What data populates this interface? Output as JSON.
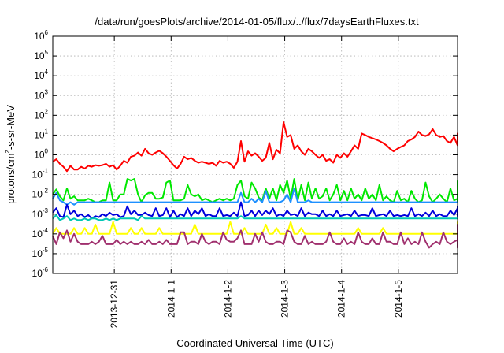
{
  "chart_data": {
    "type": "line",
    "title": "/data/run/goesPlots/archive/2014-01-05/flux/../flux/7daysEarthFluxes.txt",
    "xlabel": "Coordinated Universal Time (UTC)",
    "ylabel": "protons/cm²-s-sr-MeV",
    "ylabel_parts": {
      "pre": "protons/cm",
      "sup": "2",
      "post": "-s-sr-MeV"
    },
    "y_scale": "log",
    "ylim": [
      1e-06,
      1000000.0
    ],
    "xlim": [
      "2013-12-29T22:00",
      "2014-01-06T01:00"
    ],
    "grid": true,
    "legend": "none",
    "x_ticks": [
      {
        "at": "2013-12-31T00:00",
        "label": "2013-12-31"
      },
      {
        "at": "2014-01-01T00:00",
        "label": "2014-1-1"
      },
      {
        "at": "2014-01-02T00:00",
        "label": "2014-1-2"
      },
      {
        "at": "2014-01-03T00:00",
        "label": "2014-1-3"
      },
      {
        "at": "2014-01-04T00:00",
        "label": "2014-1-4"
      },
      {
        "at": "2014-01-05T00:00",
        "label": "2014-1-5"
      }
    ],
    "y_ticks": [
      {
        "exp": -6,
        "base": "10",
        "sup": "-6"
      },
      {
        "exp": -5,
        "base": "10",
        "sup": "-5"
      },
      {
        "exp": -4,
        "base": "10",
        "sup": "-4"
      },
      {
        "exp": -3,
        "base": "10",
        "sup": "-3"
      },
      {
        "exp": -2,
        "base": "10",
        "sup": "-2"
      },
      {
        "exp": -1,
        "base": "10",
        "sup": "-1"
      },
      {
        "exp": 0,
        "base": "10",
        "sup": "0"
      },
      {
        "exp": 1,
        "base": "10",
        "sup": "1"
      },
      {
        "exp": 2,
        "base": "10",
        "sup": "2"
      },
      {
        "exp": 3,
        "base": "10",
        "sup": "3"
      },
      {
        "exp": 4,
        "base": "10",
        "sup": "4"
      },
      {
        "exp": 5,
        "base": "10",
        "sup": "5"
      },
      {
        "exp": 6,
        "base": "10",
        "sup": "6"
      }
    ],
    "x_start": "2013-12-29T22:00",
    "step_hours": 1.5,
    "series": [
      {
        "color": "#ff0000",
        "values": [
          0.45,
          0.6,
          0.35,
          0.25,
          0.15,
          0.28,
          0.18,
          0.18,
          0.25,
          0.2,
          0.28,
          0.25,
          0.3,
          0.28,
          0.3,
          0.35,
          0.25,
          0.3,
          0.18,
          0.28,
          0.5,
          0.4,
          0.8,
          0.9,
          1.3,
          0.9,
          2.0,
          1.2,
          1.0,
          1.3,
          1.6,
          1.2,
          0.8,
          0.5,
          0.3,
          0.2,
          0.35,
          0.8,
          0.6,
          0.7,
          0.5,
          0.4,
          0.45,
          0.4,
          0.35,
          0.4,
          0.28,
          0.5,
          0.4,
          0.45,
          0.35,
          0.22,
          0.45,
          5.0,
          0.45,
          1.5,
          0.9,
          1.2,
          0.8,
          0.5,
          0.7,
          4.0,
          0.6,
          1.8,
          1.2,
          45,
          8,
          10,
          2.0,
          3.0,
          1.5,
          1.0,
          2.0,
          1.5,
          1.0,
          0.7,
          1.0,
          0.5,
          0.6,
          0.4,
          1.0,
          0.7,
          1.2,
          0.8,
          1.5,
          3.0,
          2.0,
          12,
          10,
          8,
          7,
          6,
          5,
          4,
          3,
          2,
          1.5,
          2,
          2.5,
          3,
          5,
          6,
          8,
          15,
          10,
          9,
          11,
          20,
          10,
          8,
          9,
          5,
          4,
          8,
          3,
          6,
          4,
          9,
          6,
          11,
          8,
          7,
          12,
          9,
          12,
          10,
          8,
          13
        ]
      },
      {
        "color": "#00e800",
        "values": [
          0.01,
          0.018,
          0.008,
          0.005,
          0.02,
          0.006,
          0.008,
          0.005,
          0.005,
          0.005,
          0.006,
          0.005,
          0.004,
          0.004,
          0.005,
          0.005,
          0.04,
          0.005,
          0.005,
          0.01,
          0.01,
          0.06,
          0.05,
          0.06,
          0.01,
          0.004,
          0.009,
          0.012,
          0.012,
          0.006,
          0.006,
          0.007,
          0.04,
          0.05,
          0.005,
          0.005,
          0.005,
          0.006,
          0.03,
          0.01,
          0.008,
          0.01,
          0.005,
          0.006,
          0.005,
          0.004,
          0.005,
          0.006,
          0.005,
          0.006,
          0.005,
          0.006,
          0.03,
          0.05,
          0.008,
          0.006,
          0.04,
          0.02,
          0.007,
          0.005,
          0.02,
          0.006,
          0.02,
          0.005,
          0.03,
          0.012,
          0.05,
          0.006,
          0.06,
          0.005,
          0.03,
          0.005,
          0.04,
          0.006,
          0.02,
          0.006,
          0.008,
          0.02,
          0.005,
          0.01,
          0.03,
          0.005,
          0.015,
          0.005,
          0.02,
          0.006,
          0.01,
          0.005,
          0.02,
          0.006,
          0.01,
          0.005,
          0.03,
          0.005,
          0.008,
          0.005,
          0.004,
          0.015,
          0.005,
          0.006,
          0.004,
          0.015,
          0.006,
          0.004,
          0.005,
          0.04,
          0.008,
          0.004,
          0.006,
          0.01,
          0.006,
          0.004,
          0.02,
          0.005,
          0.006,
          0.004,
          0.03,
          0.005,
          0.008,
          0.006,
          0.02,
          0.005,
          0.01,
          0.004,
          0.006,
          0.005,
          0.004,
          0.02,
          0.005,
          0.008,
          0.007,
          0.05
        ]
      },
      {
        "color": "#1e90ff",
        "values": [
          0.006,
          0.012,
          0.005,
          0.004,
          0.003,
          0.004,
          0.003,
          0.004,
          0.004,
          0.004,
          0.004,
          0.004,
          0.004,
          0.004,
          0.004,
          0.004,
          0.004,
          0.004,
          0.004,
          0.004,
          0.004,
          0.004,
          0.004,
          0.004,
          0.004,
          0.004,
          0.004,
          0.004,
          0.004,
          0.004,
          0.004,
          0.004,
          0.004,
          0.004,
          0.004,
          0.004,
          0.004,
          0.004,
          0.004,
          0.004,
          0.004,
          0.004,
          0.004,
          0.004,
          0.004,
          0.004,
          0.004,
          0.004,
          0.004,
          0.004,
          0.004,
          0.004,
          0.004,
          0.012,
          0.004,
          0.004,
          0.006,
          0.004,
          0.006,
          0.004,
          0.015,
          0.004,
          0.004,
          0.004,
          0.004,
          0.005,
          0.01,
          0.004,
          0.02,
          0.004,
          0.004,
          0.004,
          0.005,
          0.004,
          0.004,
          0.004,
          0.004,
          0.004,
          0.004,
          0.004,
          0.004,
          0.004,
          0.004,
          0.004,
          0.004,
          0.004,
          0.004,
          0.004,
          0.004,
          0.004,
          0.004,
          0.004,
          0.004,
          0.004,
          0.004,
          0.004,
          0.004,
          0.004,
          0.004,
          0.004,
          0.004,
          0.004,
          0.004,
          0.004,
          0.004,
          0.004,
          0.004,
          0.004,
          0.004,
          0.004,
          0.004,
          0.004,
          0.004,
          0.004,
          0.004,
          0.004,
          0.004,
          0.004,
          0.004,
          0.004,
          0.004,
          0.004,
          0.004,
          0.004,
          0.004,
          0.004,
          0.004,
          0.004,
          0.004,
          0.004,
          0.004,
          0.004,
          0.004,
          0.004
        ]
      },
      {
        "color": "#0000dd",
        "values": [
          0.0012,
          0.002,
          0.0008,
          0.0007,
          0.003,
          0.001,
          0.0015,
          0.0008,
          0.001,
          0.0007,
          0.0009,
          0.0006,
          0.0008,
          0.0007,
          0.001,
          0.0008,
          0.0012,
          0.0009,
          0.001,
          0.0007,
          0.0008,
          0.0025,
          0.001,
          0.0015,
          0.0009,
          0.0009,
          0.0012,
          0.0009,
          0.0008,
          0.002,
          0.0008,
          0.0009,
          0.002,
          0.0007,
          0.0015,
          0.0007,
          0.001,
          0.0008,
          0.002,
          0.0008,
          0.0015,
          0.001,
          0.002,
          0.0008,
          0.001,
          0.0008,
          0.0008,
          0.002,
          0.0008,
          0.0009,
          0.0008,
          0.0012,
          0.0008,
          0.004,
          0.0008,
          0.0009,
          0.0015,
          0.0008,
          0.0015,
          0.0009,
          0.0015,
          0.001,
          0.002,
          0.0008,
          0.001,
          0.0008,
          0.0015,
          0.0009,
          0.001,
          0.0008,
          0.002,
          0.0008,
          0.0012,
          0.001,
          0.001,
          0.0008,
          0.0015,
          0.0008,
          0.001,
          0.0008,
          0.0015,
          0.0008,
          0.0009,
          0.001,
          0.0008,
          0.0015,
          0.0008,
          0.0009,
          0.0009,
          0.0008,
          0.002,
          0.0008,
          0.0009,
          0.001,
          0.0008,
          0.0015,
          0.0008,
          0.0009,
          0.0008,
          0.0009,
          0.0008,
          0.002,
          0.0008,
          0.001,
          0.0008,
          0.0012,
          0.0008,
          0.0015,
          0.0008,
          0.001,
          0.0008,
          0.0008,
          0.0015,
          0.0009,
          0.002,
          0.0008,
          0.001,
          0.0008,
          0.0025,
          0.0008,
          0.0009,
          0.0015,
          0.0008,
          0.0009,
          0.0015,
          0.0008,
          0.0009,
          0.0008,
          0.0015,
          0.0009,
          0.001,
          0.0008,
          0.0015,
          0.0008
        ]
      },
      {
        "color": "#00c8b4",
        "values": [
          0.0006,
          0.0009,
          0.0005,
          0.0006,
          0.0008,
          0.0005,
          0.0006,
          0.0005,
          0.0005,
          0.0006,
          0.0005,
          0.0006,
          0.0006,
          0.0005,
          0.0005,
          0.0006,
          0.0005,
          0.0006,
          0.0005,
          0.0006,
          0.0006,
          0.0006,
          0.0006,
          0.0006,
          0.0005,
          0.0008,
          0.0006,
          0.0006,
          0.0006,
          0.0006,
          0.0006,
          0.0006,
          0.0006,
          0.0006,
          0.0006,
          0.0006,
          0.0006,
          0.0006,
          0.0006,
          0.0006,
          0.0006,
          0.0006,
          0.0006,
          0.0006,
          0.0006,
          0.0006,
          0.0006,
          0.0006,
          0.0006,
          0.0006,
          0.0006,
          0.0006,
          0.0006,
          0.0008,
          0.0006,
          0.0006,
          0.0006,
          0.0006,
          0.0006,
          0.0006,
          0.0006,
          0.0006,
          0.0006,
          0.0006,
          0.0006,
          0.0006,
          0.0006,
          0.0006,
          0.0006,
          0.0006,
          0.0006,
          0.0006,
          0.0006,
          0.0006,
          0.0006,
          0.0006,
          0.0006,
          0.0006,
          0.0006,
          0.0006,
          0.0006,
          0.0006,
          0.0006,
          0.0006,
          0.0006,
          0.0006,
          0.0006,
          0.0006,
          0.0006,
          0.0006,
          0.0006,
          0.0006,
          0.0006,
          0.0006,
          0.0006,
          0.0006,
          0.0006,
          0.0006,
          0.0006,
          0.0006,
          0.0006,
          0.0006,
          0.0006,
          0.0006,
          0.0006,
          0.0006,
          0.0006,
          0.0006,
          0.0006,
          0.0006,
          0.0006,
          0.0006,
          0.0006,
          0.0006,
          0.0006,
          0.0006,
          0.0006,
          0.0006,
          0.0006,
          0.0006,
          0.0006,
          0.0006,
          0.0006,
          0.0006,
          0.0006,
          0.0006,
          0.0006,
          0.0006,
          0.0006,
          0.0006,
          0.0006,
          0.0006,
          0.0006,
          0.0006
        ]
      },
      {
        "color": "#ffff00",
        "values": [
          0.0001,
          0.0002,
          0.0001,
          0.0001,
          0.0001,
          0.0001,
          0.0002,
          0.0001,
          0.0001,
          0.0002,
          0.0001,
          0.0001,
          0.0003,
          0.0001,
          0.0001,
          0.0001,
          0.0001,
          0.0004,
          0.0001,
          0.0001,
          0.0001,
          0.0001,
          0.0002,
          0.0001,
          0.0001,
          0.0002,
          0.0001,
          0.0001,
          0.0001,
          0.0001,
          0.0002,
          0.0001,
          0.0001,
          0.0001,
          0.0001,
          0.0001,
          0.0001,
          0.0001,
          0.0001,
          0.0001,
          0.0003,
          0.0001,
          0.0001,
          0.0001,
          0.0001,
          0.0001,
          0.0001,
          0.0001,
          0.0001,
          0.0001,
          0.0004,
          0.0001,
          0.0001,
          0.0001,
          0.0002,
          0.0001,
          0.0001,
          0.0001,
          0.0001,
          0.0001,
          0.0003,
          0.0001,
          0.0001,
          0.0002,
          0.0001,
          0.0001,
          0.0001,
          0.0004,
          0.0001,
          0.0001,
          0.0002,
          0.0001,
          0.0001,
          0.0001,
          0.0001,
          0.0001,
          0.0001,
          0.0001,
          0.0001,
          0.0001,
          0.0001,
          0.0001,
          0.0001,
          0.0001,
          0.0001,
          0.0001,
          0.0002,
          0.0001,
          0.0001,
          0.0001,
          0.0001,
          0.0001,
          0.0001,
          0.0002,
          0.0001,
          0.0001,
          0.0001,
          0.0001,
          0.0001,
          0.0001,
          0.0001,
          0.0001,
          0.0001,
          0.0001,
          0.0001,
          0.0001,
          0.0001,
          0.0001,
          0.0001,
          0.0001,
          0.0001,
          0.0001,
          0.0001,
          0.0001,
          0.0001,
          0.0001,
          0.0001,
          0.0001,
          0.0003,
          0.0001,
          0.0001,
          0.0001,
          0.0004,
          0.0001,
          0.0001,
          0.0001,
          0.0003,
          0.0001,
          0.0001,
          0.0001,
          0.0001,
          0.0001,
          0.0001,
          0.0001
        ]
      },
      {
        "color": "#a0306e",
        "values": [
          8e-05,
          3e-05,
          0.00012,
          6e-05,
          0.00015,
          4e-05,
          0.0001,
          4e-05,
          3e-05,
          3e-05,
          3e-05,
          4e-05,
          3e-05,
          4e-05,
          8e-05,
          3e-05,
          3e-05,
          3e-05,
          5e-05,
          3e-05,
          4e-05,
          3e-05,
          4e-05,
          3e-05,
          3e-05,
          4e-05,
          3e-05,
          5e-05,
          3e-05,
          3e-05,
          4e-05,
          3e-05,
          5e-05,
          3e-05,
          3e-05,
          3e-05,
          0.00012,
          0.00012,
          3e-05,
          4e-05,
          4e-05,
          3e-05,
          0.0001,
          4e-05,
          3e-05,
          4e-05,
          4e-05,
          3e-05,
          0.00012,
          5e-05,
          4e-05,
          4e-05,
          6e-05,
          0.00015,
          3e-05,
          3e-05,
          3e-05,
          0.0001,
          4e-05,
          0.00012,
          4e-05,
          3e-05,
          3e-05,
          4e-05,
          4e-05,
          3e-05,
          0.00015,
          0.00012,
          4e-05,
          3e-05,
          3e-05,
          8e-05,
          3e-05,
          4e-05,
          3e-05,
          3e-05,
          3e-05,
          4e-05,
          0.00012,
          4e-05,
          3e-05,
          3e-05,
          6e-05,
          3e-05,
          4e-05,
          3e-05,
          0.00012,
          4e-05,
          3e-05,
          3e-05,
          6e-05,
          3e-05,
          3e-05,
          0.00012,
          4e-05,
          4e-05,
          3e-05,
          3e-05,
          0.00012,
          3e-05,
          6e-05,
          3e-05,
          4e-05,
          3e-05,
          0.00012,
          4e-05,
          2e-05,
          3e-05,
          4e-05,
          3e-05,
          0.00012,
          4e-05,
          3e-05,
          4e-05,
          5e-05,
          3e-05,
          3e-05,
          3e-05,
          2e-05,
          3e-05,
          0.00012,
          2e-05,
          2e-05,
          3e-05,
          4e-05,
          3e-05,
          3e-05,
          0.00012,
          3e-05,
          6e-05,
          3e-05,
          0.0003,
          2e-05,
          2e-05
        ]
      }
    ]
  }
}
